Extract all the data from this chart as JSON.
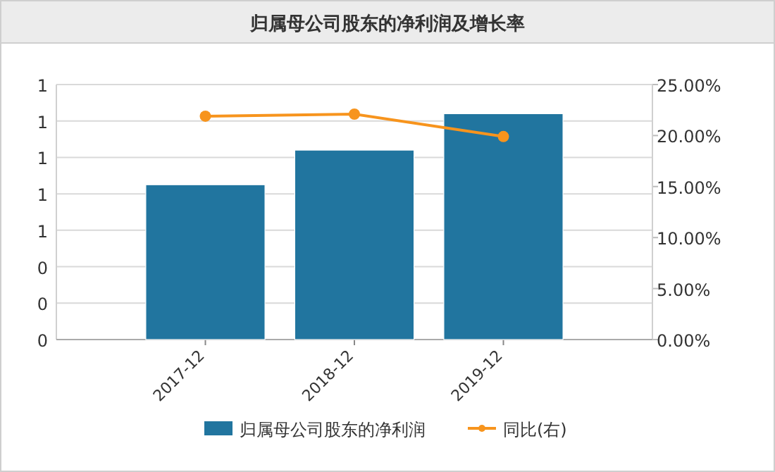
{
  "chart_data": {
    "type": "bar",
    "title": "归属母公司股东的净利润及增长率",
    "categories": [
      "2017-12",
      "2018-12",
      "2019-12"
    ],
    "series": [
      {
        "name": "归属母公司股东的净利润",
        "color": "#21759f",
        "values": [
          0.85,
          1.04,
          1.24
        ]
      },
      {
        "name": "同比(右)",
        "type": "line",
        "axis": "y2",
        "color": "#f7941d",
        "marker": "circle",
        "values": [
          21.9,
          22.1,
          19.9
        ]
      }
    ],
    "ylim": [
      0,
      1.4
    ],
    "yticks": [
      {
        "value": 0,
        "label": "0"
      },
      {
        "value": 0.2,
        "label": "0"
      },
      {
        "value": 0.4,
        "label": "0"
      },
      {
        "value": 0.6,
        "label": "1"
      },
      {
        "value": 0.8,
        "label": "1"
      },
      {
        "value": 1.0,
        "label": "1"
      },
      {
        "value": 1.2,
        "label": "1"
      },
      {
        "value": 1.4,
        "label": "1"
      }
    ],
    "y2lim": [
      0,
      25
    ],
    "y2ticks": [
      {
        "value": 0,
        "label": "0.00%"
      },
      {
        "value": 5,
        "label": "5.00%"
      },
      {
        "value": 10,
        "label": "10.00%"
      },
      {
        "value": 15,
        "label": "15.00%"
      },
      {
        "value": 20,
        "label": "20.00%"
      },
      {
        "value": 25,
        "label": "25.00%"
      }
    ],
    "grid": "y",
    "legend": "bottom"
  }
}
